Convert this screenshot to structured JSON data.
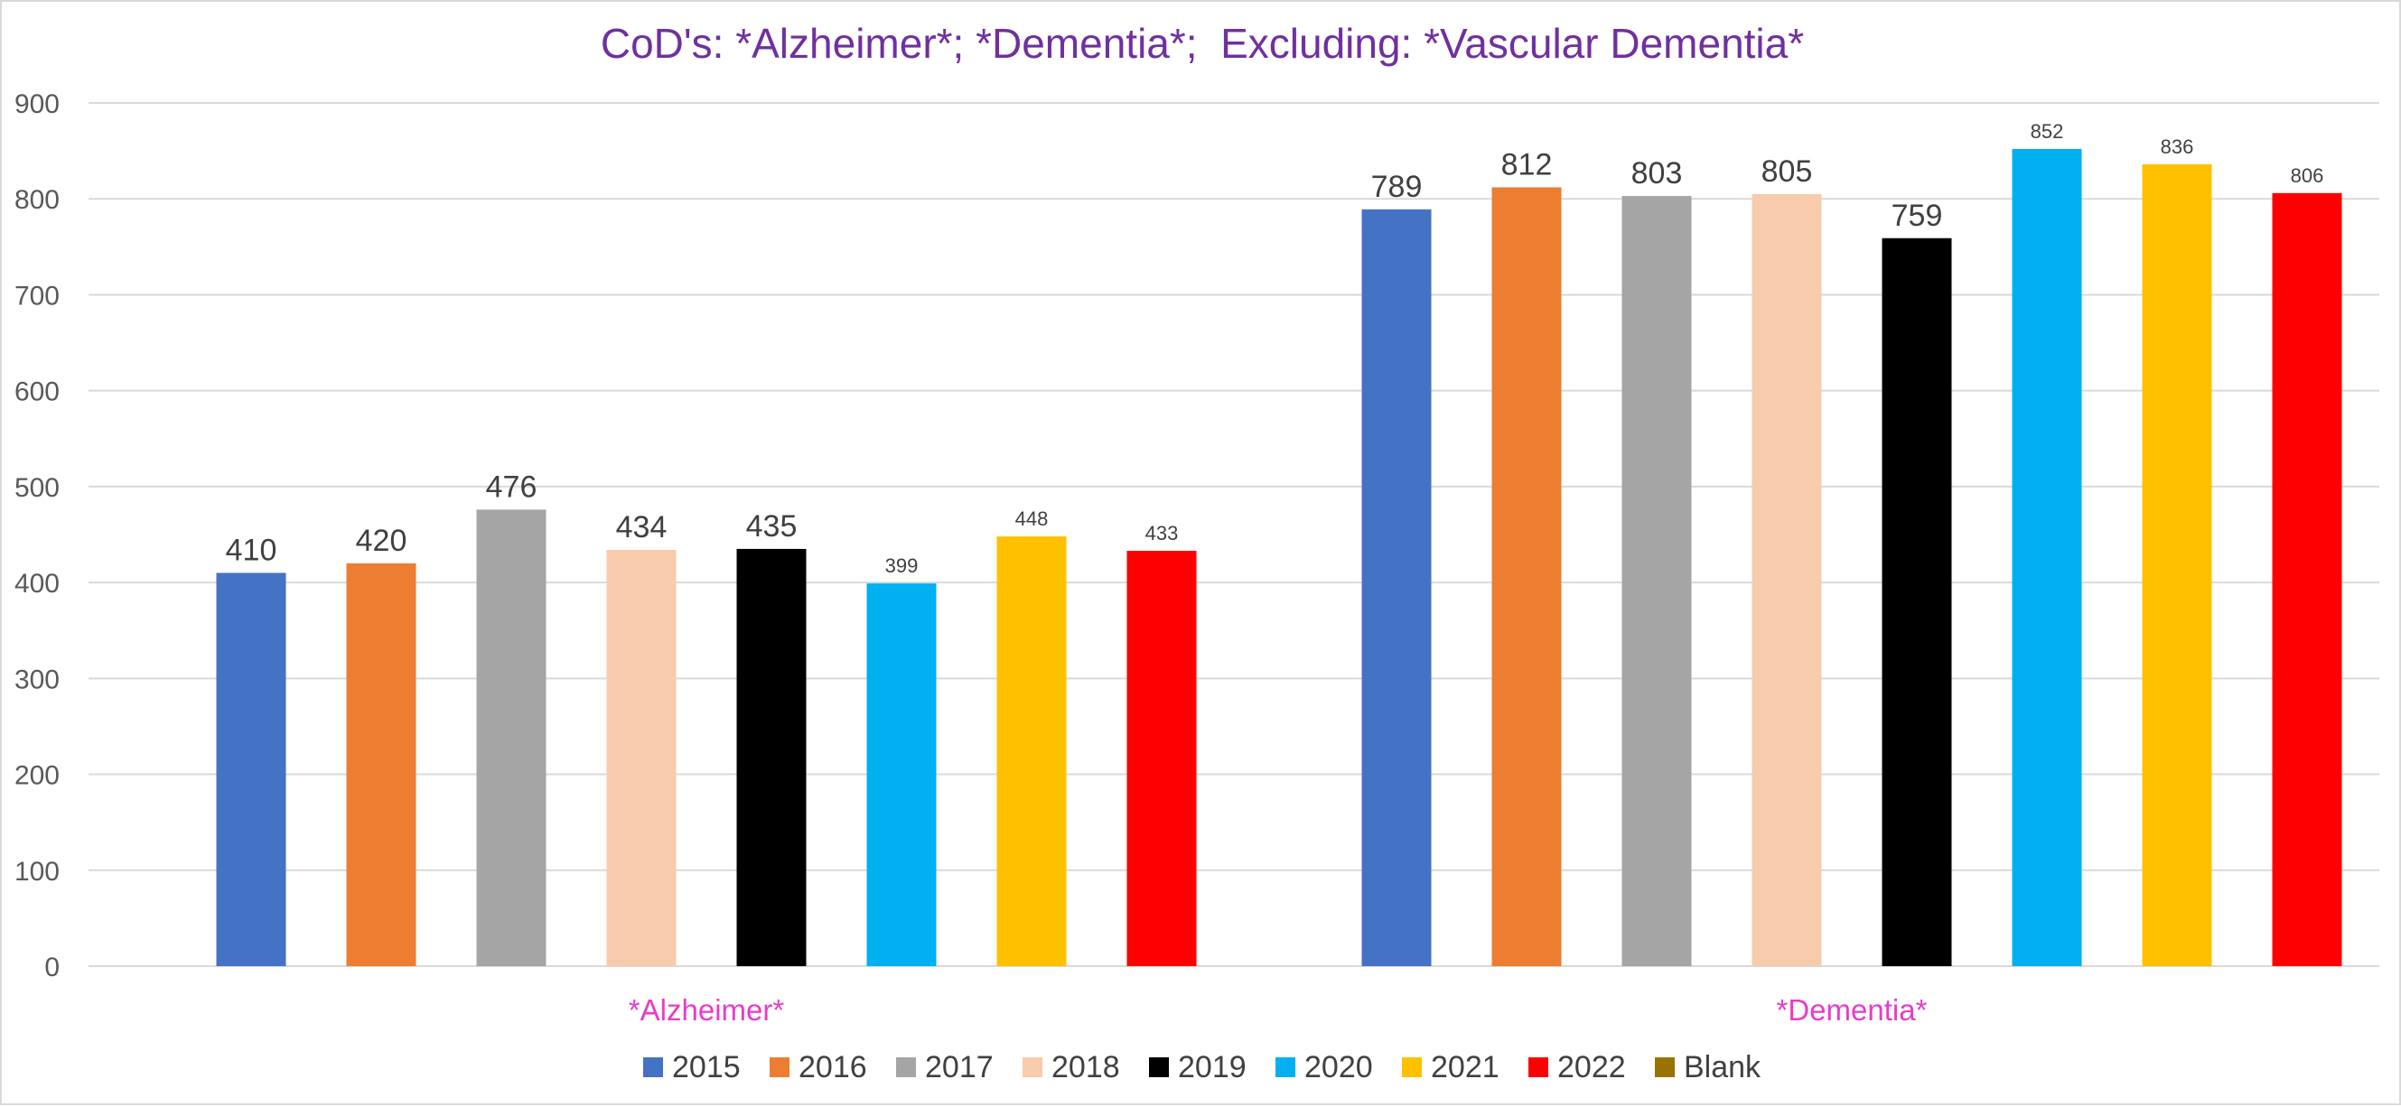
{
  "chart_data": {
    "type": "bar",
    "title": "CoD's: *Alzheimer*; *Dementia*;  Excluding: *Vascular Dementia*",
    "categories": [
      "*Alzheimer*",
      "*Dementia*"
    ],
    "series": [
      {
        "name": "2015",
        "color": "#4472C4",
        "values": [
          410,
          789
        ]
      },
      {
        "name": "2016",
        "color": "#ED7D31",
        "values": [
          420,
          812
        ]
      },
      {
        "name": "2017",
        "color": "#A5A5A5",
        "values": [
          476,
          803
        ]
      },
      {
        "name": "2018",
        "color": "#F8CBAD",
        "values": [
          434,
          805
        ]
      },
      {
        "name": "2019",
        "color": "#000000",
        "values": [
          435,
          759
        ]
      },
      {
        "name": "2020",
        "color": "#00B0F0",
        "values": [
          399,
          852
        ]
      },
      {
        "name": "2021",
        "color": "#FFC000",
        "values": [
          448,
          836
        ]
      },
      {
        "name": "2022",
        "color": "#FF0000",
        "values": [
          433,
          806
        ]
      },
      {
        "name": "Blank",
        "color": "#997300",
        "values": [
          null,
          null
        ]
      }
    ],
    "data_labels": [
      [
        "410",
        "420",
        "476",
        "434",
        "435",
        "399",
        "448",
        "433"
      ],
      [
        "789",
        "812",
        "803",
        "805",
        "759",
        "852",
        "836",
        "806"
      ]
    ],
    "ylim": [
      0,
      900
    ],
    "yticks": [
      0,
      100,
      200,
      300,
      400,
      500,
      600,
      700,
      800,
      900
    ],
    "grid": true,
    "legend_position": "bottom",
    "title_color": "#7030A0",
    "category_label_color": "#E83CC8",
    "xlabel": "",
    "ylabel": ""
  }
}
